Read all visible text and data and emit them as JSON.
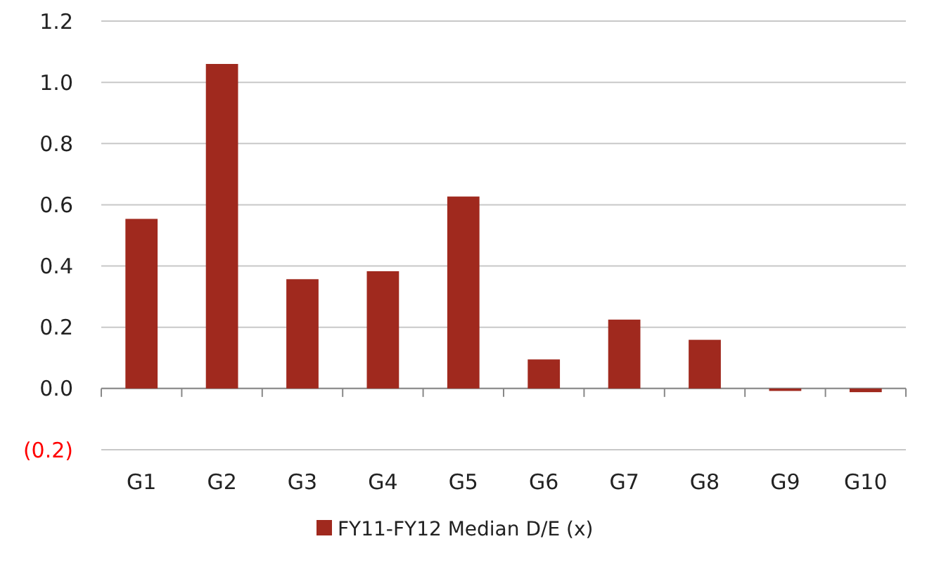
{
  "chart_data": {
    "type": "bar",
    "categories": [
      "G1",
      "G2",
      "G3",
      "G4",
      "G5",
      "G6",
      "G7",
      "G8",
      "G9",
      "G10"
    ],
    "series": [
      {
        "name": "FY11-FY12 Median D/E (x)",
        "color": "#a0291e",
        "values": [
          0.554,
          1.06,
          0.357,
          0.383,
          0.627,
          0.095,
          0.225,
          0.159,
          -0.008,
          -0.012
        ]
      }
    ],
    "ylim": [
      -0.2,
      1.2
    ],
    "yticks": [
      {
        "value": -0.2,
        "label": "(0.2)"
      },
      {
        "value": 0,
        "label": "0.0"
      },
      {
        "value": 0.2,
        "label": "0.2"
      },
      {
        "value": 0.4,
        "label": "0.4"
      },
      {
        "value": 0.6,
        "label": "0.6"
      },
      {
        "value": 0.8,
        "label": "0.8"
      },
      {
        "value": 1.0,
        "label": "1.0"
      },
      {
        "value": 1.2,
        "label": "1.2"
      }
    ],
    "grid": "y",
    "legend": "bottom"
  }
}
